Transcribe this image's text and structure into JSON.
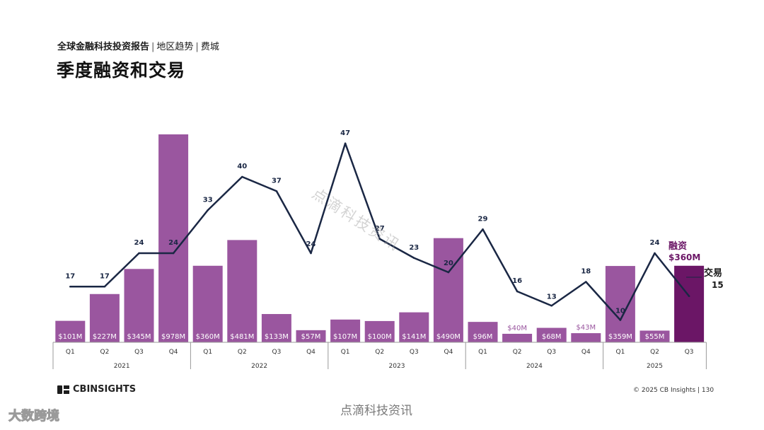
{
  "header": {
    "report_title": "全球金融科技投资报告",
    "section": "地区趋势",
    "city": "费城",
    "title": "季度融资和交易"
  },
  "legend": {
    "funding_label": "融资",
    "funding_value": "$360M",
    "deals_label": "交易",
    "deals_value": "15"
  },
  "colors": {
    "bar": "#9a569f",
    "bar_highlight": "#6b1666",
    "line": "#1a2744",
    "funding_label": "#6b1666",
    "dim_label": "#9a569f"
  },
  "chart_data": {
    "type": "bar",
    "title": "季度融资和交易",
    "categories": [
      "Q1",
      "Q2",
      "Q3",
      "Q4",
      "Q1",
      "Q2",
      "Q3",
      "Q4",
      "Q1",
      "Q2",
      "Q3",
      "Q4",
      "Q1",
      "Q2",
      "Q3",
      "Q4",
      "Q1",
      "Q2",
      "Q3"
    ],
    "years": [
      {
        "label": "2021",
        "count": 4
      },
      {
        "label": "2022",
        "count": 4
      },
      {
        "label": "2023",
        "count": 4
      },
      {
        "label": "2024",
        "count": 4
      },
      {
        "label": "2025",
        "count": 3
      }
    ],
    "series": [
      {
        "name": "融资",
        "values": [
          101,
          227,
          345,
          978,
          360,
          481,
          133,
          57,
          107,
          100,
          141,
          490,
          96,
          40,
          68,
          43,
          359,
          55,
          360
        ],
        "labels": [
          "$101M",
          "$227M",
          "$345M",
          "$978M",
          "$360M",
          "$481M",
          "$133M",
          "$57M",
          "$107M",
          "$100M",
          "$141M",
          "$490M",
          "$96M",
          "$40M",
          "$68M",
          "$43M",
          "$359M",
          "$55M",
          ""
        ]
      },
      {
        "name": "交易",
        "values": [
          17,
          17,
          24,
          24,
          33,
          40,
          37,
          24,
          47,
          27,
          23,
          20,
          29,
          16,
          13,
          18,
          10,
          24,
          15
        ],
        "labels": [
          "17",
          "17",
          "24",
          "24",
          "33",
          "40",
          "37",
          "24",
          "47",
          "27",
          "23",
          "20",
          "29",
          "16",
          "13",
          "18",
          "10",
          "24",
          ""
        ]
      }
    ]
  },
  "footer": {
    "logo_text": "CBINSIGHTS",
    "copyright": "© 2025 CB Insights | 130"
  },
  "watermarks": {
    "diagonal": "点滴科技资讯",
    "bottom": "点滴科技资讯",
    "corner": "大数跨境"
  }
}
